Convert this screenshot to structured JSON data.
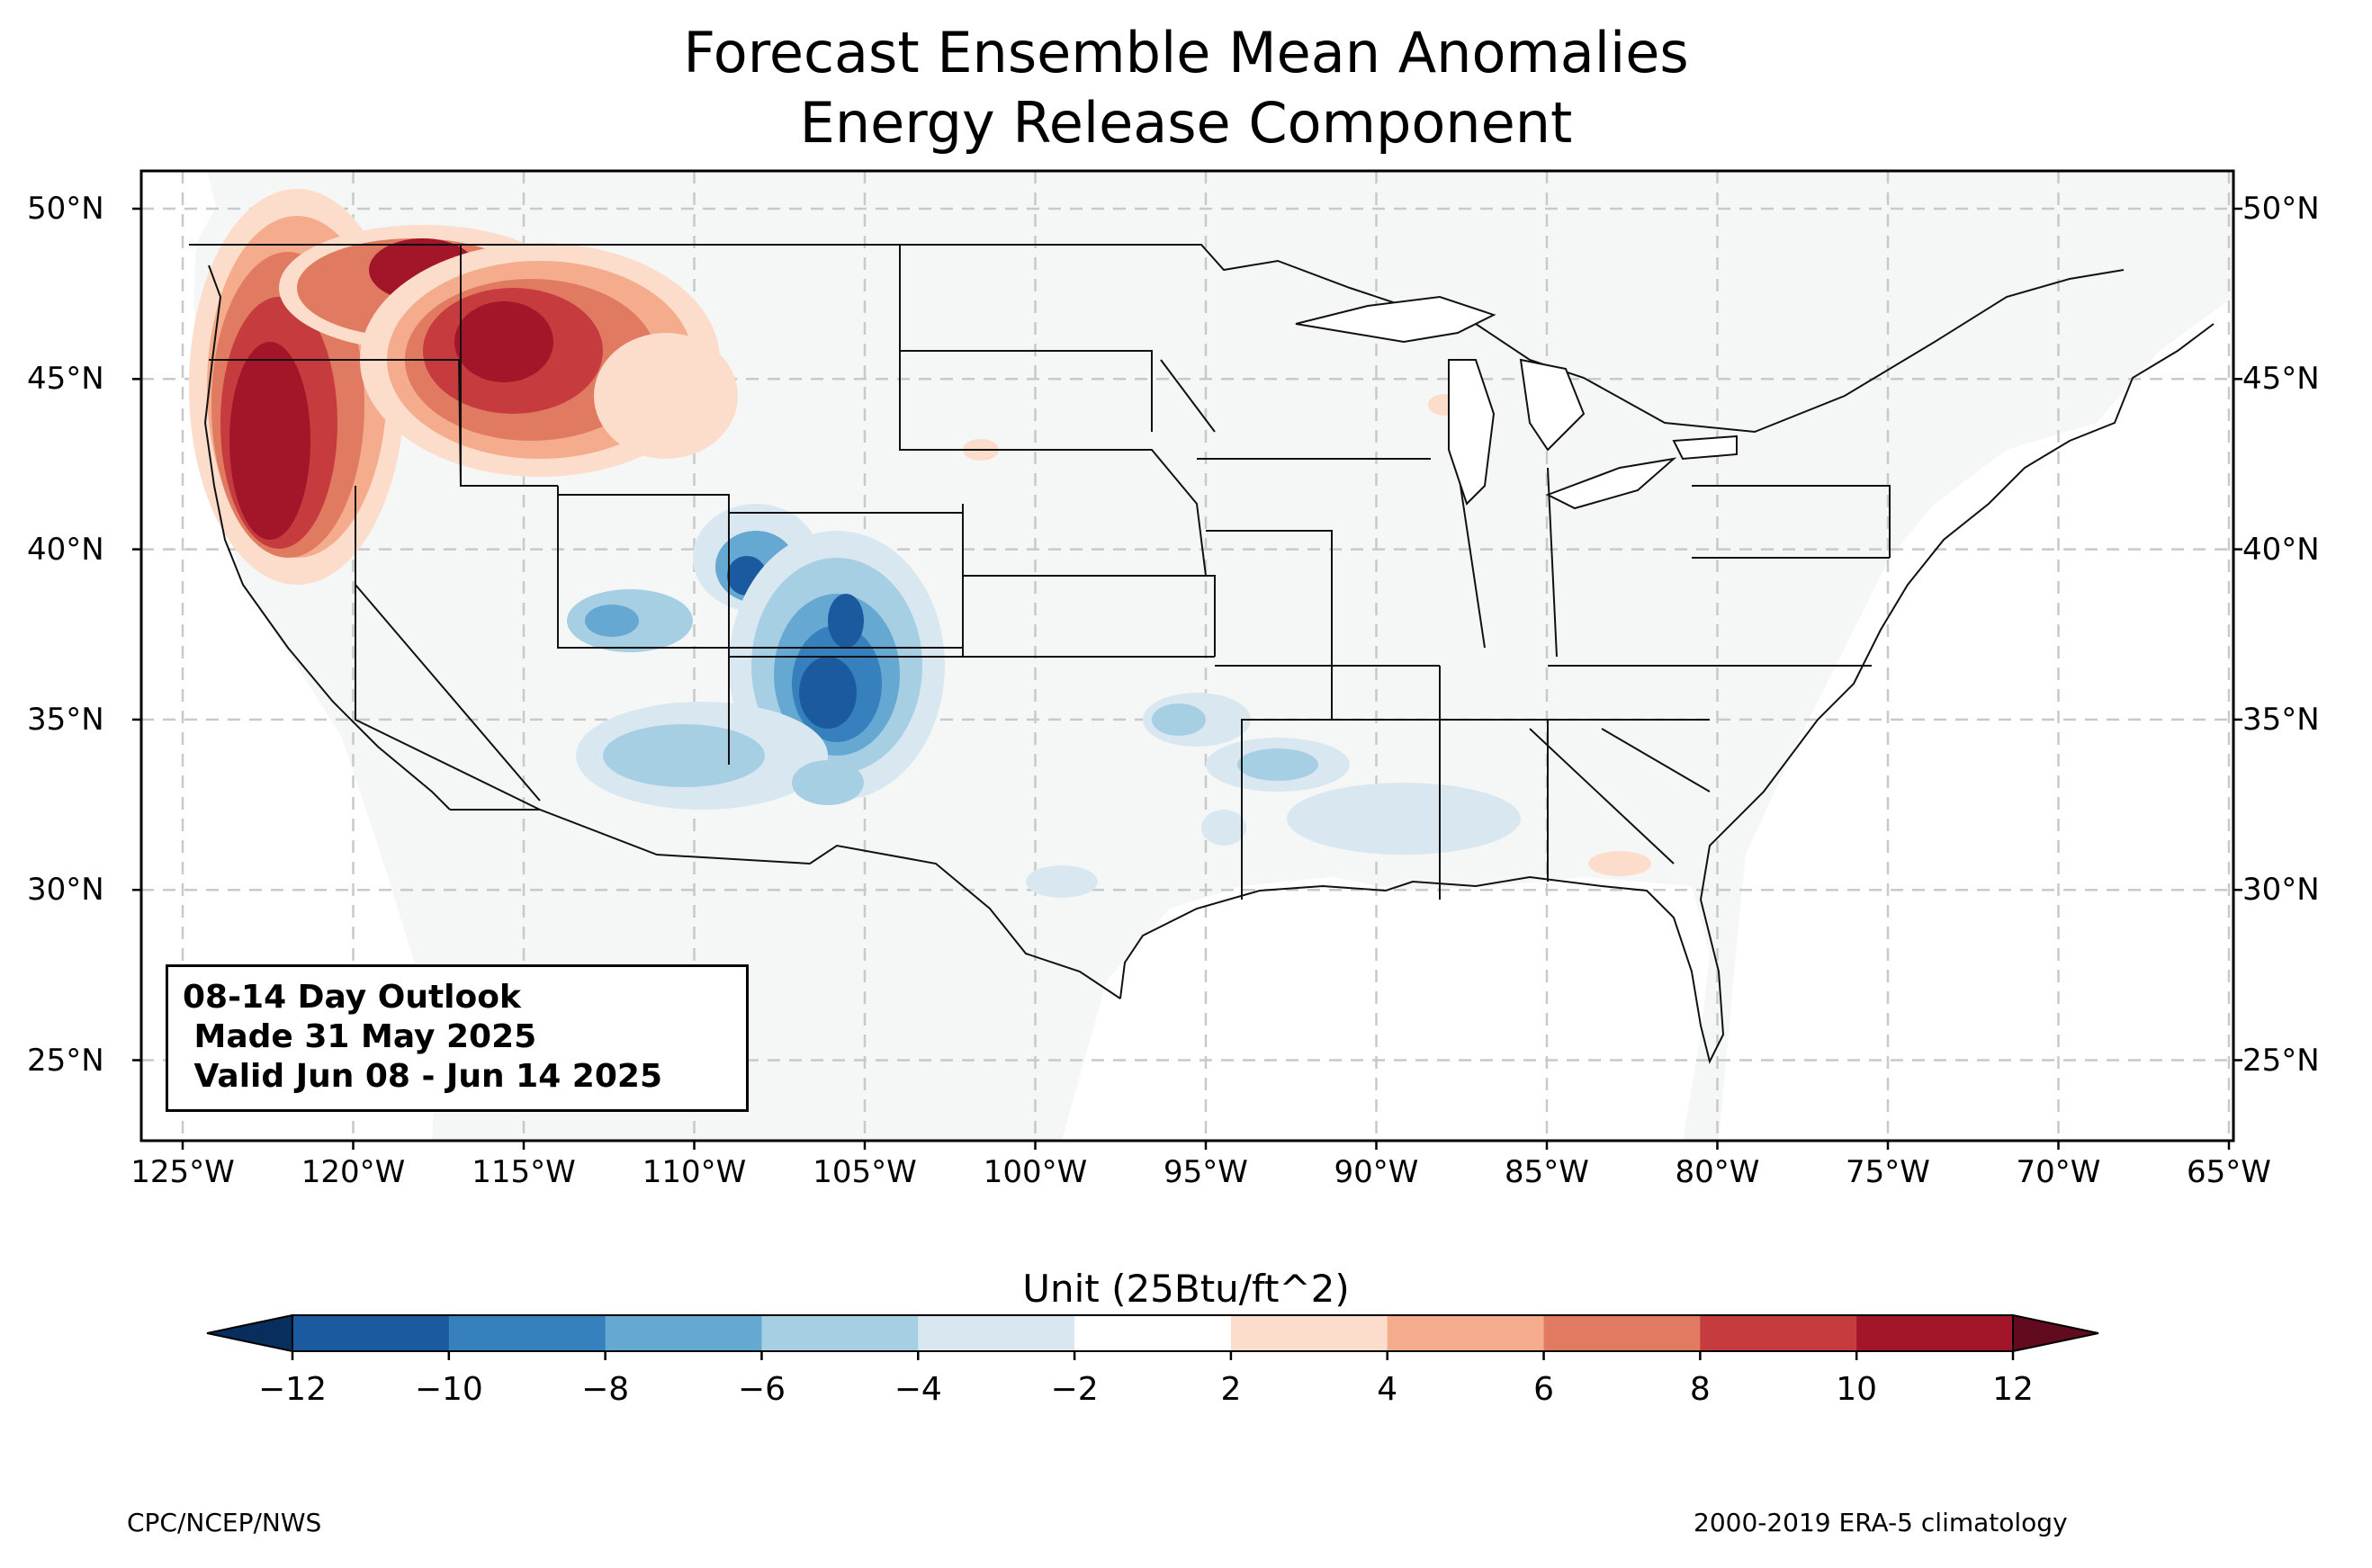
{
  "title_line1": "Forecast Ensemble Mean Anomalies",
  "title_line2": "Energy Release Component",
  "info_box": {
    "line1": "08-14 Day Outlook",
    "line2": " Made 31 May 2025",
    "line3": " Valid Jun 08 - Jun 14 2025"
  },
  "lat_labels": [
    "50°N",
    "45°N",
    "40°N",
    "35°N",
    "30°N",
    "25°N"
  ],
  "lon_labels": [
    "125°W",
    "120°W",
    "115°W",
    "110°W",
    "105°W",
    "100°W",
    "95°W",
    "90°W",
    "85°W",
    "80°W",
    "75°W",
    "70°W",
    "65°W"
  ],
  "colorbar": {
    "title": "Unit (25Btu/ft^2)",
    "ticks": [
      "−12",
      "−10",
      "−8",
      "−6",
      "−4",
      "−2",
      "2",
      "4",
      "6",
      "8",
      "10",
      "12"
    ],
    "bin_colors": [
      "#1b5a9e",
      "#3580bd",
      "#65a8d2",
      "#a7cfe4",
      "#d9e8f0",
      "#ffffff",
      "#fcdcca",
      "#f4ac8c",
      "#e07b62",
      "#c53b3e",
      "#a3162a"
    ],
    "under_color": "#082e5e",
    "over_color": "#620b1f"
  },
  "footer_left": "CPC/NCEP/NWS",
  "footer_right": "2000-2019 ERA-5 climatology"
}
